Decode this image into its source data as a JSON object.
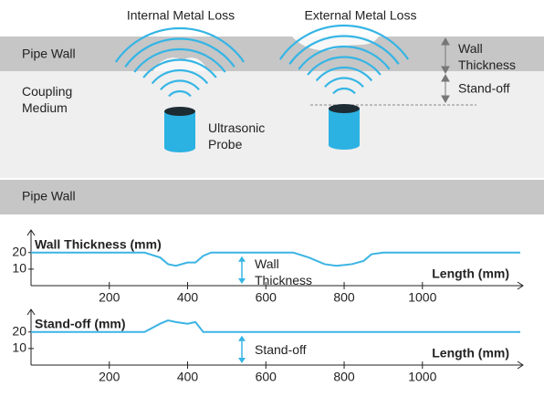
{
  "diagram": {
    "headings": [
      "Internal Metal Loss",
      "External Metal Loss"
    ],
    "layers": {
      "pipe_wall_top": "Pipe Wall",
      "coupling_medium": "Coupling Medium",
      "pipe_wall_bottom": "Pipe Wall"
    },
    "probe": "Ultrasonic Probe",
    "dimensions": {
      "wall_thickness": "Wall Thickness",
      "stand_off": "Stand-off"
    }
  },
  "chart_data": [
    {
      "type": "line",
      "title": "Wall Thickness (mm)",
      "x_label": "Length (mm)",
      "annotation": "Wall Thickness",
      "color": "#3cb4e4",
      "x": [
        0,
        290,
        330,
        350,
        370,
        400,
        420,
        440,
        460,
        670,
        710,
        750,
        780,
        820,
        850,
        870,
        900,
        1250
      ],
      "values": [
        20,
        20,
        17,
        13,
        12,
        14,
        14,
        18,
        20,
        20,
        17,
        13,
        12,
        13,
        15,
        19,
        20,
        20
      ],
      "xlim": [
        0,
        1250
      ],
      "xticks": [
        200,
        400,
        600,
        800,
        1000
      ],
      "ylim": [
        0,
        32
      ],
      "yticks": [
        10,
        20
      ]
    },
    {
      "type": "line",
      "title": "Stand-off (mm)",
      "x_label": "Length (mm)",
      "annotation": "Stand-off",
      "color": "#3cb4e4",
      "x": [
        0,
        290,
        330,
        350,
        370,
        400,
        420,
        440,
        1250
      ],
      "values": [
        20,
        20,
        25,
        27,
        26,
        25,
        26,
        20,
        20
      ],
      "xlim": [
        0,
        1250
      ],
      "xticks": [
        200,
        400,
        600,
        800,
        1000
      ],
      "ylim": [
        0,
        32
      ],
      "yticks": [
        10,
        20
      ]
    }
  ]
}
